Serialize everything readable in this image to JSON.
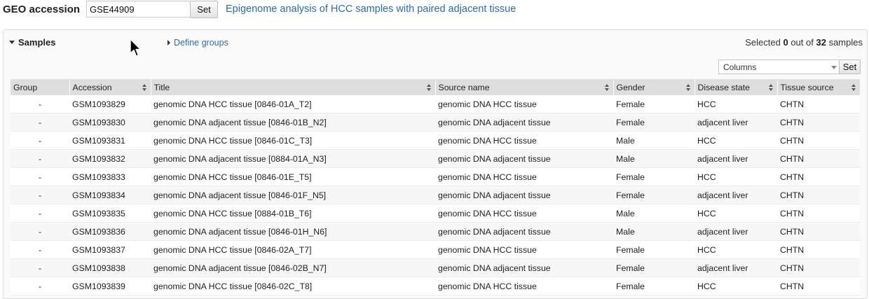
{
  "geo": {
    "label": "GEO accession",
    "input_value": "GSE44909",
    "set_label": "Set",
    "series_title": "Epigenome analysis of HCC samples with paired adjacent tissue"
  },
  "panel": {
    "samples_label": "Samples",
    "define_groups_label": "Define groups",
    "selected_prefix": "Selected",
    "selected_count": "0",
    "selected_middle": "out of",
    "total_count": "32",
    "selected_suffix": "samples",
    "columns_label": "Columns",
    "columns_set_label": "Set"
  },
  "table": {
    "headers": [
      "Group",
      "Accession",
      "Title",
      "Source name",
      "Gender",
      "Disease state",
      "Tissue source"
    ],
    "rows": [
      [
        "-",
        "GSM1093829",
        "genomic DNA HCC tissue [0846-01A_T2]",
        "genomic DNA HCC tissue",
        "Female",
        "HCC",
        "CHTN"
      ],
      [
        "-",
        "GSM1093830",
        "genomic DNA adjacent tissue [0846-01B_N2]",
        "genomic DNA adjacent tissue",
        "Female",
        "adjacent liver",
        "CHTN"
      ],
      [
        "-",
        "GSM1093831",
        "genomic DNA HCC tissue [0846-01C_T3]",
        "genomic DNA HCC tissue",
        "Male",
        "HCC",
        "CHTN"
      ],
      [
        "-",
        "GSM1093832",
        "genomic DNA adjacent tissue [0884-01A_N3]",
        "genomic DNA adjacent tissue",
        "Male",
        "adjacent liver",
        "CHTN"
      ],
      [
        "-",
        "GSM1093833",
        "genomic DNA HCC tissue [0846-01E_T5]",
        "genomic DNA HCC tissue",
        "Female",
        "HCC",
        "CHTN"
      ],
      [
        "-",
        "GSM1093834",
        "genomic DNA adjacent tissue [0846-01F_N5]",
        "genomic DNA adjacent tissue",
        "Female",
        "adjacent liver",
        "CHTN"
      ],
      [
        "-",
        "GSM1093835",
        "genomic DNA HCC tissue [0884-01B_T6]",
        "genomic DNA HCC tissue",
        "Male",
        "HCC",
        "CHTN"
      ],
      [
        "-",
        "GSM1093836",
        "genomic DNA adjacent tissue [0846-01H_N6]",
        "genomic DNA adjacent tissue",
        "Male",
        "adjacent liver",
        "CHTN"
      ],
      [
        "-",
        "GSM1093837",
        "genomic DNA HCC tissue [0846-02A_T7]",
        "genomic DNA HCC tissue",
        "Female",
        "HCC",
        "CHTN"
      ],
      [
        "-",
        "GSM1093838",
        "genomic DNA adjacent tissue [0846-02B_N7]",
        "genomic DNA adjacent tissue",
        "Female",
        "adjacent liver",
        "CHTN"
      ],
      [
        "-",
        "GSM1093839",
        "genomic DNA HCC tissue [0846-02C_T8]",
        "genomic DNA HCC tissue",
        "Female",
        "HCC",
        "CHTN"
      ]
    ]
  }
}
